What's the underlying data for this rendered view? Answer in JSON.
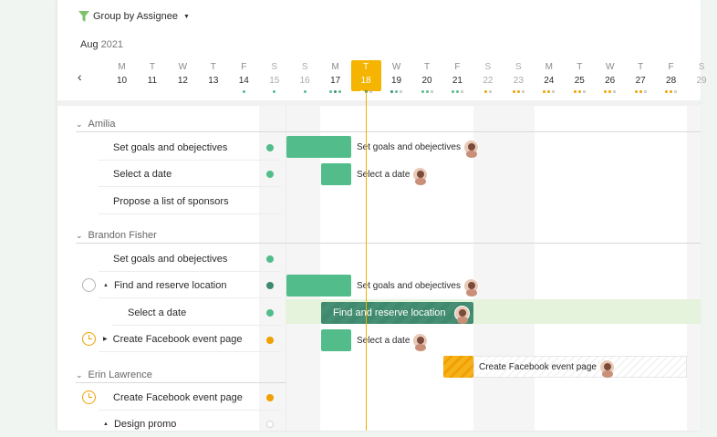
{
  "header": {
    "group_label": "Group by Assignee",
    "month": "Aug",
    "year": "2021"
  },
  "days": [
    {
      "dn": "M",
      "dd": "10",
      "weekend": false,
      "dots": []
    },
    {
      "dn": "T",
      "dd": "11",
      "weekend": false,
      "dots": []
    },
    {
      "dn": "W",
      "dd": "12",
      "weekend": false,
      "dots": []
    },
    {
      "dn": "T",
      "dd": "13",
      "weekend": false,
      "dots": []
    },
    {
      "dn": "F",
      "dd": "14",
      "weekend": false,
      "dots": [
        "#52bd8b"
      ]
    },
    {
      "dn": "S",
      "dd": "15",
      "weekend": true,
      "dots": [
        "#52bd8b"
      ]
    },
    {
      "dn": "S",
      "dd": "16",
      "weekend": true,
      "dots": [
        "#52bd8b"
      ]
    },
    {
      "dn": "M",
      "dd": "17",
      "weekend": false,
      "dots": [
        "#52bd8b",
        "#3f8a6e",
        "#52bd8b"
      ]
    },
    {
      "dn": "T",
      "dd": "18",
      "weekend": false,
      "today": true,
      "dots": [
        "#ffffff",
        "#3f8a6e",
        "#cccccc"
      ]
    },
    {
      "dn": "W",
      "dd": "19",
      "weekend": false,
      "dots": [
        "#3f8a6e",
        "#52bd8b",
        "#cccccc"
      ]
    },
    {
      "dn": "T",
      "dd": "20",
      "weekend": false,
      "dots": [
        "#52bd8b",
        "#52bd8b",
        "#cccccc"
      ]
    },
    {
      "dn": "F",
      "dd": "21",
      "weekend": false,
      "dots": [
        "#52bd8b",
        "#52bd8b",
        "#cccccc"
      ]
    },
    {
      "dn": "S",
      "dd": "22",
      "weekend": true,
      "dots": [
        "#f0a000",
        "#cccccc"
      ]
    },
    {
      "dn": "S",
      "dd": "23",
      "weekend": true,
      "dots": [
        "#f0a000",
        "#f0a000",
        "#cccccc"
      ]
    },
    {
      "dn": "M",
      "dd": "24",
      "weekend": false,
      "dots": [
        "#f0a000",
        "#f0a000",
        "#cccccc"
      ]
    },
    {
      "dn": "T",
      "dd": "25",
      "weekend": false,
      "dots": [
        "#f0a000",
        "#f0a000",
        "#cccccc"
      ]
    },
    {
      "dn": "W",
      "dd": "26",
      "weekend": false,
      "dots": [
        "#f0a000",
        "#f0a000",
        "#cccccc"
      ]
    },
    {
      "dn": "T",
      "dd": "27",
      "weekend": false,
      "dots": [
        "#f0a000",
        "#f0a000",
        "#cccccc"
      ]
    },
    {
      "dn": "F",
      "dd": "28",
      "weekend": false,
      "dots": [
        "#f0a000",
        "#f0a000",
        "#cccccc"
      ]
    },
    {
      "dn": "S",
      "dd": "29",
      "weekend": true,
      "dots": []
    }
  ],
  "groups": {
    "amilia": {
      "name": "Amilia",
      "tasks": [
        "Set goals and obejectives",
        "Select a date",
        "Propose a list of sponsors"
      ],
      "bars": [
        "Set goals and obejectives",
        "Select a date"
      ]
    },
    "brandon": {
      "name": "Brandon Fisher",
      "tasks": [
        "Set goals and obejectives",
        "Find and reserve location",
        "Select a date",
        "Create Facebook event page"
      ],
      "bars": [
        "Set goals and obejectives",
        "Find and reserve location",
        "Select a date",
        "Create Facebook event page"
      ]
    },
    "erin": {
      "name": "Erin Lawrence",
      "tasks": [
        "Create Facebook event page",
        "Design promo"
      ]
    }
  },
  "colors": {
    "green": "#52bd8b",
    "dark_green": "#3f8a6e",
    "orange": "#f0a000",
    "today": "#f4b400"
  }
}
